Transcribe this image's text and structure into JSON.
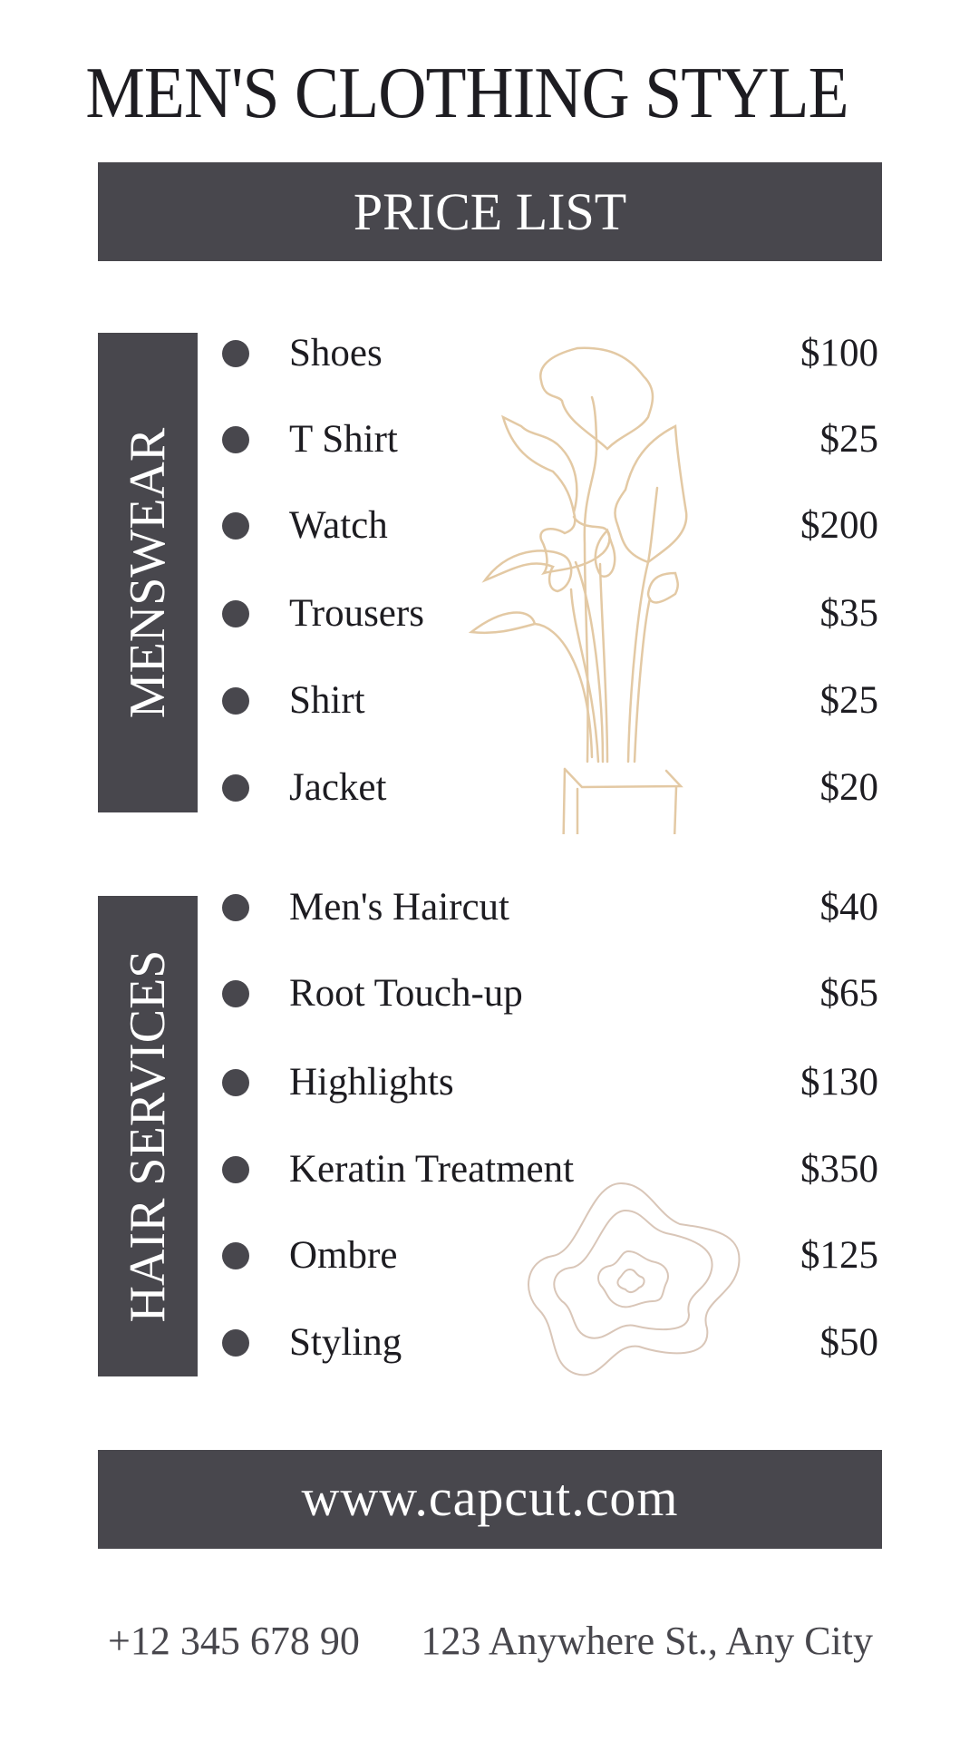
{
  "title": "MEN'S CLOTHING STYLE",
  "subtitle": "PRICE LIST",
  "sections": [
    {
      "name": "MENSWEAR",
      "items": [
        {
          "label": "Shoes",
          "price": "$100"
        },
        {
          "label": "T Shirt",
          "price": "$25"
        },
        {
          "label": "Watch",
          "price": "$200"
        },
        {
          "label": "Trousers",
          "price": "$35"
        },
        {
          "label": "Shirt",
          "price": "$25"
        },
        {
          "label": "Jacket",
          "price": "$20"
        }
      ]
    },
    {
      "name": "HAIR SERVICES",
      "items": [
        {
          "label": "Men's Haircut",
          "price": "$40"
        },
        {
          "label": "Root Touch-up",
          "price": "$65"
        },
        {
          "label": "Highlights",
          "price": "$130"
        },
        {
          "label": "Keratin Treatment",
          "price": "$350"
        },
        {
          "label": "Ombre",
          "price": "$125"
        },
        {
          "label": "Styling",
          "price": "$50"
        }
      ]
    }
  ],
  "website": "www.capcut.com",
  "footer": {
    "phone": "+12 345 678 90",
    "address": "123 Anywhere St., Any City"
  },
  "colors": {
    "dark": "#48474d",
    "accent_line": "#e3c9a4",
    "text": "#1d1c21"
  },
  "icons": [
    "plant-illustration",
    "abstract-ripple-shape"
  ]
}
